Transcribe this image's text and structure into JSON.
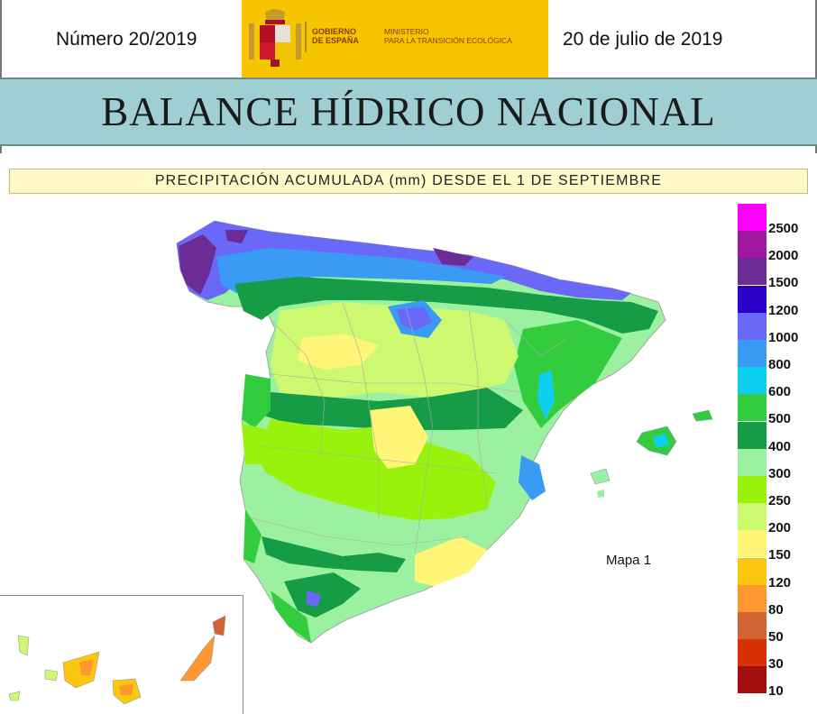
{
  "header": {
    "issue": "Número 20/2019",
    "date": "20 de julio de 2019",
    "logo_gov": "GOBIERNO\nDE ESPAÑA",
    "logo_ministry": "MINISTERIO\nPARA LA TRANSICIÓN ECOLÓGICA",
    "title": "BALANCE HÍDRICO NACIONAL",
    "subtitle": "PRECIPITACIÓN ACUMULADA (mm) DESDE EL 1 DE SEPTIEMBRE"
  },
  "map": {
    "label": "Mapa 1",
    "legend": [
      {
        "value": "2500",
        "color": "#ff00ff"
      },
      {
        "value": "2000",
        "color": "#a0189f"
      },
      {
        "value": "1500",
        "color": "#6c2c96"
      },
      {
        "value": "1200",
        "color": "#2a00c8"
      },
      {
        "value": "1000",
        "color": "#6a68f8"
      },
      {
        "value": "800",
        "color": "#3a9bf4"
      },
      {
        "value": "600",
        "color": "#0fcff0"
      },
      {
        "value": "500",
        "color": "#33cc3f"
      },
      {
        "value": "400",
        "color": "#169b46"
      },
      {
        "value": "300",
        "color": "#9cf1a0"
      },
      {
        "value": "250",
        "color": "#99f20c"
      },
      {
        "value": "200",
        "color": "#cdf971"
      },
      {
        "value": "150",
        "color": "#fff678"
      },
      {
        "value": "120",
        "color": "#fdc70f"
      },
      {
        "value": "80",
        "color": "#ff9731"
      },
      {
        "value": "50",
        "color": "#d06433"
      },
      {
        "value": "30",
        "color": "#d63205"
      },
      {
        "value": "10",
        "color": "#a30e0e"
      }
    ]
  }
}
